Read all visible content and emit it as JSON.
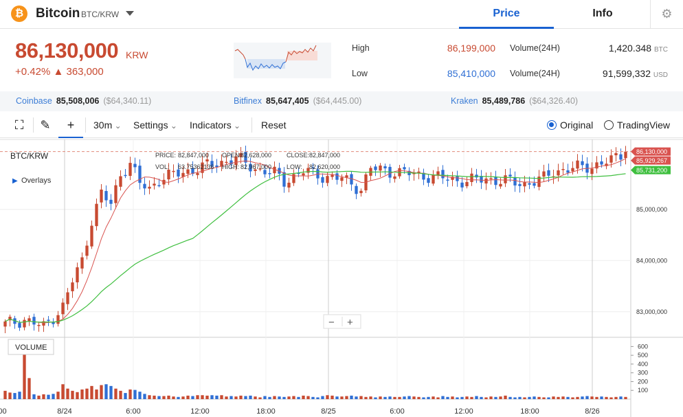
{
  "header": {
    "logo_glyph": "₿",
    "coin_name": "Bitcoin",
    "pair": "BTC/KRW",
    "tabs": [
      {
        "label": "Price",
        "active": true
      },
      {
        "label": "Info",
        "active": false
      }
    ],
    "settings_icon": "gear-icon"
  },
  "ticker": {
    "price": "86,130,000",
    "unit": "KRW",
    "change_pct": "+0.42%",
    "change_abs": "▲ 363,000",
    "up_color": "#c84a31",
    "down_color": "#2f6fd4"
  },
  "stats": {
    "high_label": "High",
    "high_value": "86,199,000",
    "low_label": "Low",
    "low_value": "85,410,000",
    "vol_btc_label": "Volume(24H)",
    "vol_btc_value": "1,420.348",
    "vol_btc_unit": "BTC",
    "vol_usd_label": "Volume(24H)",
    "vol_usd_value": "91,599,332",
    "vol_usd_unit": "USD"
  },
  "exchanges": [
    {
      "name": "Coinbase",
      "price": "85,508,006",
      "usd": "($64,340.11)"
    },
    {
      "name": "Bitfinex",
      "price": "85,647,405",
      "usd": "($64,445.00)"
    },
    {
      "name": "Kraken",
      "price": "85,489,786",
      "usd": "($64,326.40)"
    }
  ],
  "toolbar": {
    "fullscreen_icon": "fullscreen-icon",
    "draw_icon": "pencil-icon",
    "crosshair_icon": "crosshair-icon",
    "interval": "30m",
    "settings": "Settings",
    "indicators": "Indicators",
    "reset": "Reset",
    "view_original": "Original",
    "view_tradingview": "TradingView",
    "selected_view": "Original"
  },
  "chart_data": {
    "type": "candlestick",
    "symbol_label": "BTC/KRW",
    "overlays_label": "Overlays",
    "volume_label": "VOLUME",
    "zoom_out": "−",
    "zoom_in": "+",
    "ohlc_readout": {
      "price_label": "PRICE:",
      "price": "82,847,000",
      "open_label": "OPEN:",
      "open": "82,628,000",
      "close_label": "CLOSE:",
      "close": "82,847,000",
      "vol_label": "VOL:",
      "vol": "63.75362136",
      "high_label": "HIGH:",
      "high": "82,967,000",
      "low_label": "LOW:",
      "low": "82,620,000"
    },
    "y_ticks": [
      83000000,
      84000000,
      85000000
    ],
    "y_tick_labels": [
      "83,000,000",
      "84,000,000",
      "85,000,000"
    ],
    "ylim": [
      82500000,
      86300000
    ],
    "volume_ticks": [
      "100",
      "200",
      "300",
      "400",
      "500",
      "600"
    ],
    "volume_ylim": [
      0,
      650
    ],
    "x_tick_labels": [
      ":00",
      "8/24",
      "6:00",
      "12:00",
      "18:00",
      "8/25",
      "6:00",
      "12:00",
      "18:00",
      "8/26"
    ],
    "last_price_tag": "86,130,000",
    "ma_fast_tag": "85,929,267",
    "ma_slow_tag": "85,731,200",
    "colors": {
      "up": "#c84a31",
      "down": "#2f6fd4",
      "ma_fast": "#d9534f",
      "ma_slow": "#3fbf3f",
      "last_line": "#e08a7a"
    },
    "closes_anchor": [
      [
        0,
        82750000
      ],
      [
        4,
        82850000
      ],
      [
        8,
        82700000
      ],
      [
        12,
        83100000
      ],
      [
        14,
        83600000
      ],
      [
        16,
        84000000
      ],
      [
        18,
        84800000
      ],
      [
        20,
        85300000
      ],
      [
        22,
        85100000
      ],
      [
        24,
        85700000
      ],
      [
        26,
        85900000
      ],
      [
        28,
        85500000
      ],
      [
        30,
        85400000
      ],
      [
        32,
        85600000
      ],
      [
        36,
        85700000
      ],
      [
        40,
        85800000
      ],
      [
        44,
        85900000
      ],
      [
        48,
        86000000
      ],
      [
        52,
        85800000
      ],
      [
        56,
        85700000
      ],
      [
        58,
        85550000
      ],
      [
        62,
        85750000
      ],
      [
        66,
        85650000
      ],
      [
        70,
        85600000
      ],
      [
        74,
        85400000
      ],
      [
        76,
        85800000
      ],
      [
        80,
        85750000
      ],
      [
        84,
        85700000
      ],
      [
        88,
        85650000
      ],
      [
        92,
        85600000
      ],
      [
        96,
        85550000
      ],
      [
        100,
        85600000
      ],
      [
        104,
        85550000
      ],
      [
        108,
        85500000
      ],
      [
        112,
        85600000
      ],
      [
        114,
        85750000
      ],
      [
        118,
        85800000
      ],
      [
        122,
        85850000
      ],
      [
        126,
        85950000
      ],
      [
        129,
        86130000
      ]
    ],
    "volumes": [
      95,
      75,
      70,
      85,
      610,
      240,
      55,
      40,
      55,
      50,
      60,
      85,
      170,
      120,
      95,
      80,
      110,
      120,
      150,
      110,
      160,
      170,
      150,
      120,
      95,
      70,
      110,
      105,
      85,
      60,
      45,
      40,
      35,
      35,
      40,
      30,
      25,
      30,
      40,
      35,
      45,
      45,
      40,
      45,
      40,
      45,
      30,
      35,
      30,
      40,
      35,
      40,
      30,
      20,
      35,
      25,
      35,
      30,
      25,
      30,
      35,
      25,
      40,
      35,
      25,
      20,
      35,
      45,
      40,
      30,
      30,
      35,
      40,
      30,
      35,
      25,
      30,
      20,
      30,
      25,
      30,
      25,
      25,
      30,
      35,
      30,
      25,
      20,
      25,
      30,
      20,
      35,
      25,
      30,
      20,
      25,
      30,
      25,
      35,
      25,
      20,
      30,
      25,
      30,
      40,
      25,
      20,
      25,
      20,
      25,
      30,
      25,
      20,
      20,
      30,
      25,
      30,
      25,
      20,
      25,
      30,
      35,
      30,
      25,
      30,
      25,
      20,
      25,
      30,
      25
    ]
  }
}
